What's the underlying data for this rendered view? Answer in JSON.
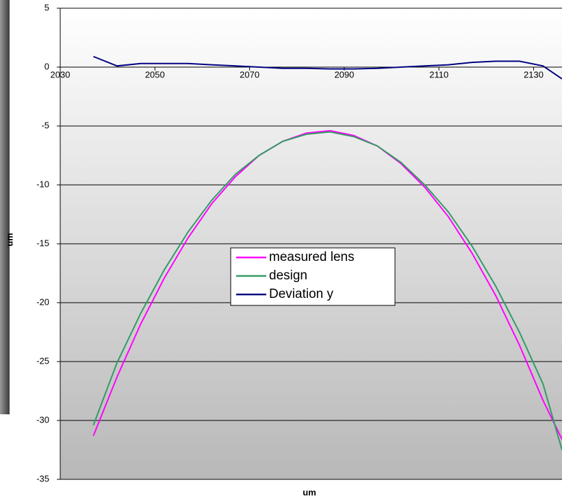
{
  "chart_data": {
    "type": "line",
    "x_label": "um",
    "y_label": "um",
    "x": [
      2037,
      2042,
      2047,
      2052,
      2057,
      2062,
      2067,
      2072,
      2077,
      2082,
      2087,
      2092,
      2097,
      2102,
      2107,
      2112,
      2117,
      2122,
      2127,
      2132,
      2136
    ],
    "series": [
      {
        "name": "measured lens",
        "color": "#ff00ff",
        "values": [
          -31.3,
          -26.3,
          -21.8,
          -17.9,
          -14.5,
          -11.6,
          -9.3,
          -7.5,
          -6.3,
          -5.6,
          -5.4,
          -5.8,
          -6.7,
          -8.2,
          -10.2,
          -12.7,
          -15.8,
          -19.4,
          -23.6,
          -28.3,
          -31.6
        ]
      },
      {
        "name": "design",
        "color": "#339966",
        "values": [
          -30.4,
          -25.1,
          -20.9,
          -17.2,
          -14.0,
          -11.3,
          -9.1,
          -7.5,
          -6.3,
          -5.7,
          -5.5,
          -5.9,
          -6.7,
          -8.1,
          -10.0,
          -12.3,
          -15.2,
          -18.6,
          -22.5,
          -26.9,
          -32.5
        ]
      },
      {
        "name": "Deviation y",
        "color": "#000080",
        "values": [
          0.9,
          0.1,
          0.3,
          0.3,
          0.3,
          0.2,
          0.1,
          0,
          -0.1,
          -0.1,
          -0.15,
          -0.15,
          -0.1,
          0,
          0.1,
          0.2,
          0.4,
          0.5,
          0.5,
          0.1,
          -1
        ]
      }
    ],
    "xlim": [
      2030,
      2136
    ],
    "xticks": [
      2030,
      2050,
      2070,
      2090,
      2110,
      2130
    ],
    "ylim": [
      -35,
      5
    ],
    "yticks": [
      5,
      0,
      -5,
      -10,
      -15,
      -20,
      -25,
      -30,
      -35
    ],
    "grid": true,
    "legend": "center"
  }
}
